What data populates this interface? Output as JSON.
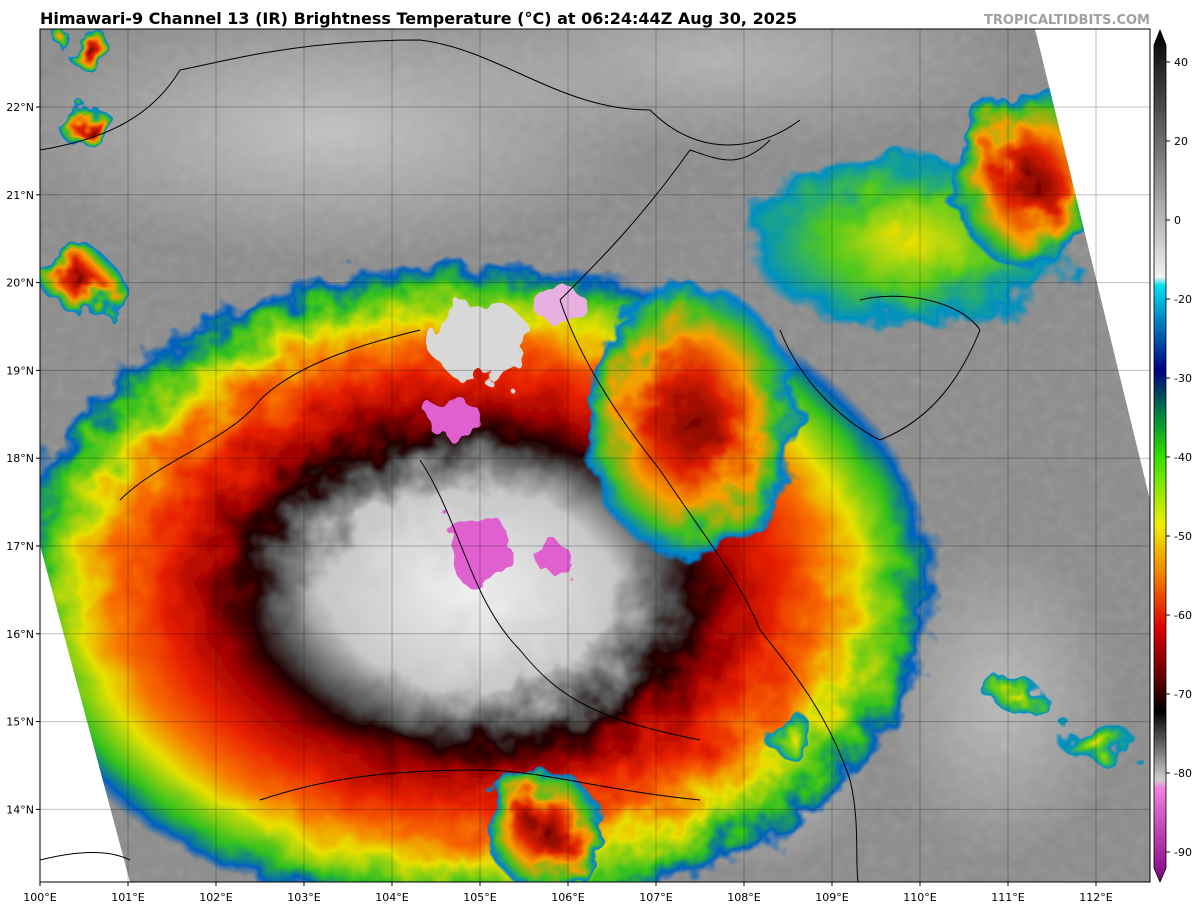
{
  "header": {
    "title": "Himawari-9 Channel 13 (IR) Brightness Temperature (°C) at 06:24:44Z Aug 30, 2025",
    "source": "TROPICALTIDBITS.COM"
  },
  "map": {
    "lon_labels": [
      "100°E",
      "101°E",
      "102°E",
      "103°E",
      "104°E",
      "105°E",
      "106°E",
      "107°E",
      "108°E",
      "109°E",
      "110°E",
      "111°E",
      "112°E"
    ],
    "lat_labels": [
      "22°N",
      "21°N",
      "20°N",
      "19°N",
      "18°N",
      "17°N",
      "16°N",
      "15°N",
      "14°N"
    ]
  },
  "colorbar": {
    "ticks": [
      40,
      20,
      0,
      -20,
      -30,
      -40,
      -50,
      -60,
      -70,
      -80,
      -90
    ]
  }
}
